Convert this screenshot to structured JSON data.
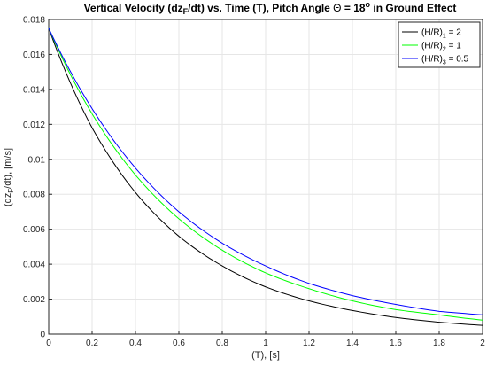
{
  "chart_data": {
    "type": "line",
    "title": "Vertical Velocity (dz_F/dt) vs. Time (T), Pitch Angle Θ = 18° in Ground Effect",
    "xlabel": "(T), [s]",
    "ylabel": "(dz_F/dt), [m/s]",
    "xlim": [
      0,
      2
    ],
    "ylim": [
      0,
      0.018
    ],
    "grid": true,
    "legend_position": "top-right",
    "x_ticks": [
      "0",
      "0.2",
      "0.4",
      "0.6",
      "0.8",
      "1",
      "1.2",
      "1.4",
      "1.6",
      "1.8",
      "2"
    ],
    "y_ticks": [
      "0",
      "0.002",
      "0.004",
      "0.006",
      "0.008",
      "0.01",
      "0.012",
      "0.014",
      "0.016",
      "0.018"
    ],
    "x": [
      0,
      0.2,
      0.4,
      0.6,
      0.8,
      1.0,
      1.2,
      1.4,
      1.6,
      1.8,
      2.0
    ],
    "series": [
      {
        "name": "(H/R)1 = 2",
        "legend": {
          "base": "(H/R)",
          "sub": "1",
          "rest": " = 2"
        },
        "color": "#000000",
        "values": [
          0.0175,
          0.0118,
          0.0081,
          0.0056,
          0.0039,
          0.0027,
          0.0019,
          0.00135,
          0.00095,
          0.00068,
          0.0005
        ]
      },
      {
        "name": "(H/R)2 = 1",
        "legend": {
          "base": "(H/R)",
          "sub": "2",
          "rest": " = 1"
        },
        "color": "#00ff00",
        "values": [
          0.0175,
          0.0126,
          0.0091,
          0.0066,
          0.0048,
          0.0035,
          0.0026,
          0.0019,
          0.0014,
          0.0011,
          0.0008
        ]
      },
      {
        "name": "(H/R)3 = 0.5",
        "legend": {
          "base": "(H/R)",
          "sub": "3",
          "rest": " = 0.5"
        },
        "color": "#0000ff",
        "values": [
          0.0175,
          0.0129,
          0.0095,
          0.007,
          0.0052,
          0.0039,
          0.0029,
          0.0022,
          0.0017,
          0.0013,
          0.0011
        ]
      }
    ]
  }
}
